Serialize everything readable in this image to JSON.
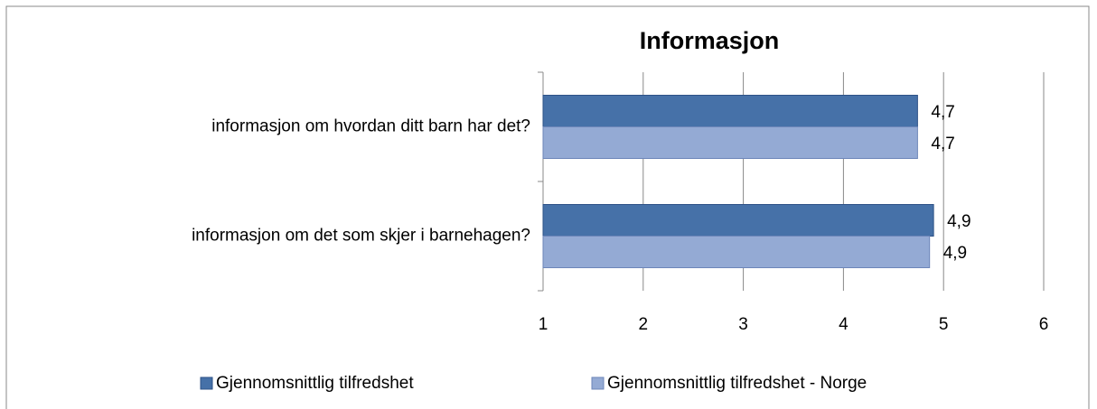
{
  "chart_data": {
    "type": "bar",
    "orientation": "horizontal",
    "title": "Informasjon",
    "categories": [
      "informasjon om hvordan ditt barn har det?",
      "informasjon om det som skjer i barnehagen?"
    ],
    "series": [
      {
        "name": "Gjennomsnittlig tilfredshet",
        "color": "#4671a8",
        "values": [
          4.74,
          4.9
        ],
        "value_labels": [
          "4,7",
          "4,9"
        ]
      },
      {
        "name": "Gjennomsnittlig tilfredshet - Norge",
        "color": "#94aad4",
        "values": [
          4.74,
          4.86
        ],
        "value_labels": [
          "4,7",
          "4,9"
        ]
      }
    ],
    "xlim": [
      1,
      6
    ],
    "xticks": [
      1,
      2,
      3,
      4,
      5,
      6
    ],
    "grid": true,
    "legend": "bottom"
  }
}
